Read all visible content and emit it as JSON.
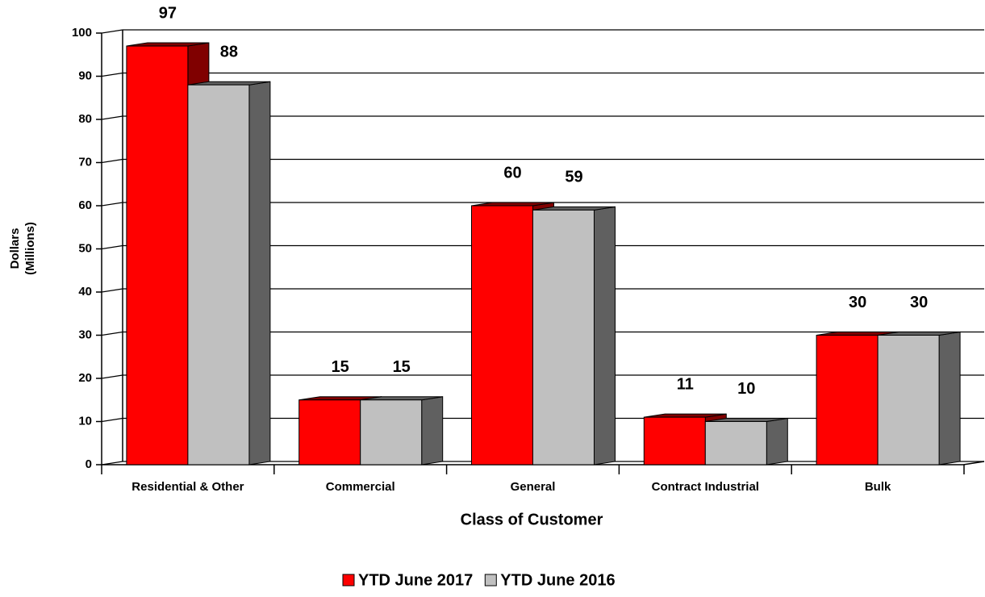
{
  "chart_data": {
    "type": "bar3d",
    "xlabel": "Class of Customer",
    "ylabel": [
      "Dollars",
      "(Millions)"
    ],
    "categories": [
      "Residential & Other",
      "Commercial",
      "General",
      "Contract Industrial",
      "Bulk"
    ],
    "series": [
      {
        "name": "YTD June 2017",
        "color": "#ff0000",
        "side": "#800000",
        "values": [
          97,
          15,
          60,
          11,
          30
        ]
      },
      {
        "name": "YTD June 2016",
        "color": "#c0c0c0",
        "side": "#606060",
        "values": [
          88,
          15,
          59,
          10,
          30
        ]
      }
    ],
    "ylim": [
      0,
      100
    ],
    "yticks": [
      0,
      10,
      20,
      30,
      40,
      50,
      60,
      70,
      80,
      90,
      100
    ],
    "grid": true
  }
}
